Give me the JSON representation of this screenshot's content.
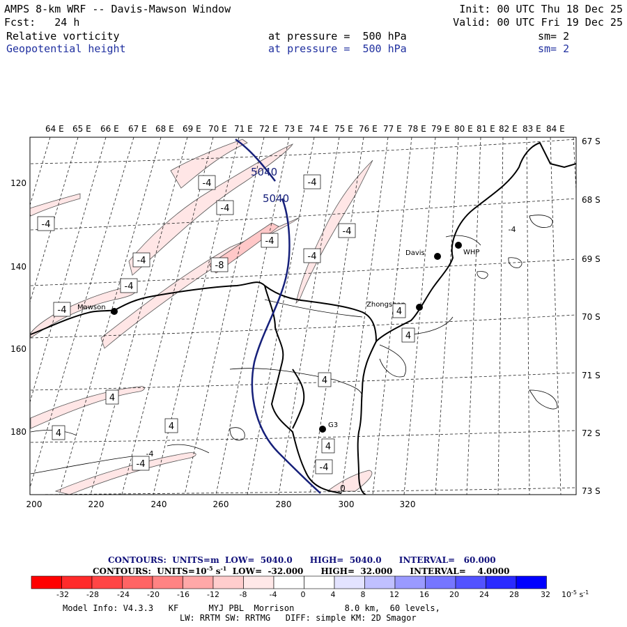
{
  "header": {
    "title": "AMPS 8-km WRF -- Davis-Mawson Window",
    "fcst": "Fcst:   24 h",
    "init": "Init: 00 UTC Thu 18 Dec 25",
    "valid": "Valid: 00 UTC Fri 19 Dec 25",
    "field1": {
      "name": "Relative vorticity",
      "level": "at pressure =  500 hPa",
      "sm": "sm= 2"
    },
    "field2": {
      "name": "Geopotential height",
      "level": "at pressure =  500 hPa",
      "sm": "sm= 2"
    }
  },
  "map": {
    "lon_labels": [
      "64 E",
      "65 E",
      "66 E",
      "67 E",
      "68 E",
      "69 E",
      "70 E",
      "71 E",
      "72 E",
      "73 E",
      "74 E",
      "75 E",
      "76 E",
      "77 E",
      "78 E",
      "79 E",
      "80 E",
      "81 E",
      "82 E",
      "83 E",
      "84 E"
    ],
    "lat_labels": [
      "67 S",
      "68 S",
      "69 S",
      "70 S",
      "71 S",
      "72 S",
      "73 S"
    ],
    "x_ticks": [
      "200",
      "220",
      "240",
      "260",
      "280",
      "300",
      "320"
    ],
    "y_ticks": [
      "120",
      "140",
      "160",
      "180"
    ],
    "stations": [
      {
        "name": "Mawson"
      },
      {
        "name": "Davis"
      },
      {
        "name": "WHP"
      },
      {
        "name": "Zhongshan"
      },
      {
        "name": "G3"
      }
    ],
    "height_labels": [
      "5040",
      "5040"
    ],
    "vort_labels": [
      "-4",
      "-4",
      "-4",
      "-4",
      "-4",
      "-8",
      "-4",
      "-4",
      "-4",
      "-4",
      "-4",
      "-4",
      "-4",
      "4",
      "4",
      "4",
      "4",
      "4",
      "4",
      "4",
      "-4",
      "-4",
      "0"
    ]
  },
  "footer": {
    "contour1": "CONTOURS:  UNITS=m  LOW=  5040.0      HIGH=  5040.0      INTERVAL=   60.000",
    "contour2": "CONTOURS:  UNITS=10",
    "contour2b": "-5",
    "contour2c": " s",
    "contour2d": "-1",
    "contour2e": "  LOW=  -32.000      HIGH=  32.000      INTERVAL=    4.0000",
    "scale_labels": [
      "-32",
      "-28",
      "-24",
      "-20",
      "-16",
      "-12",
      "-8",
      "-4",
      "0",
      "4",
      "8",
      "12",
      "16",
      "20",
      "24",
      "28",
      "32"
    ],
    "scale_unit": "10",
    "scale_unit_exp": "-5",
    "scale_unit_s": " s",
    "scale_unit_s_exp": "-1",
    "model_info": "Model Info: V4.3.3   KF      MYJ PBL  Morrison          8.0 km,  60 levels,",
    "model_info2": "LW: RRTM SW: RRTMG   DIFF: simple KM: 2D Smagor",
    "colors": [
      "#ff0000",
      "#ff2a2a",
      "#ff4545",
      "#ff6464",
      "#ff8383",
      "#ffa8a8",
      "#ffcdcd",
      "#ffe8e8",
      "#ffffff",
      "#ffffff",
      "#e3e3ff",
      "#c0c0ff",
      "#9a9aff",
      "#7676ff",
      "#5252ff",
      "#2a2aff",
      "#0000ff"
    ]
  }
}
